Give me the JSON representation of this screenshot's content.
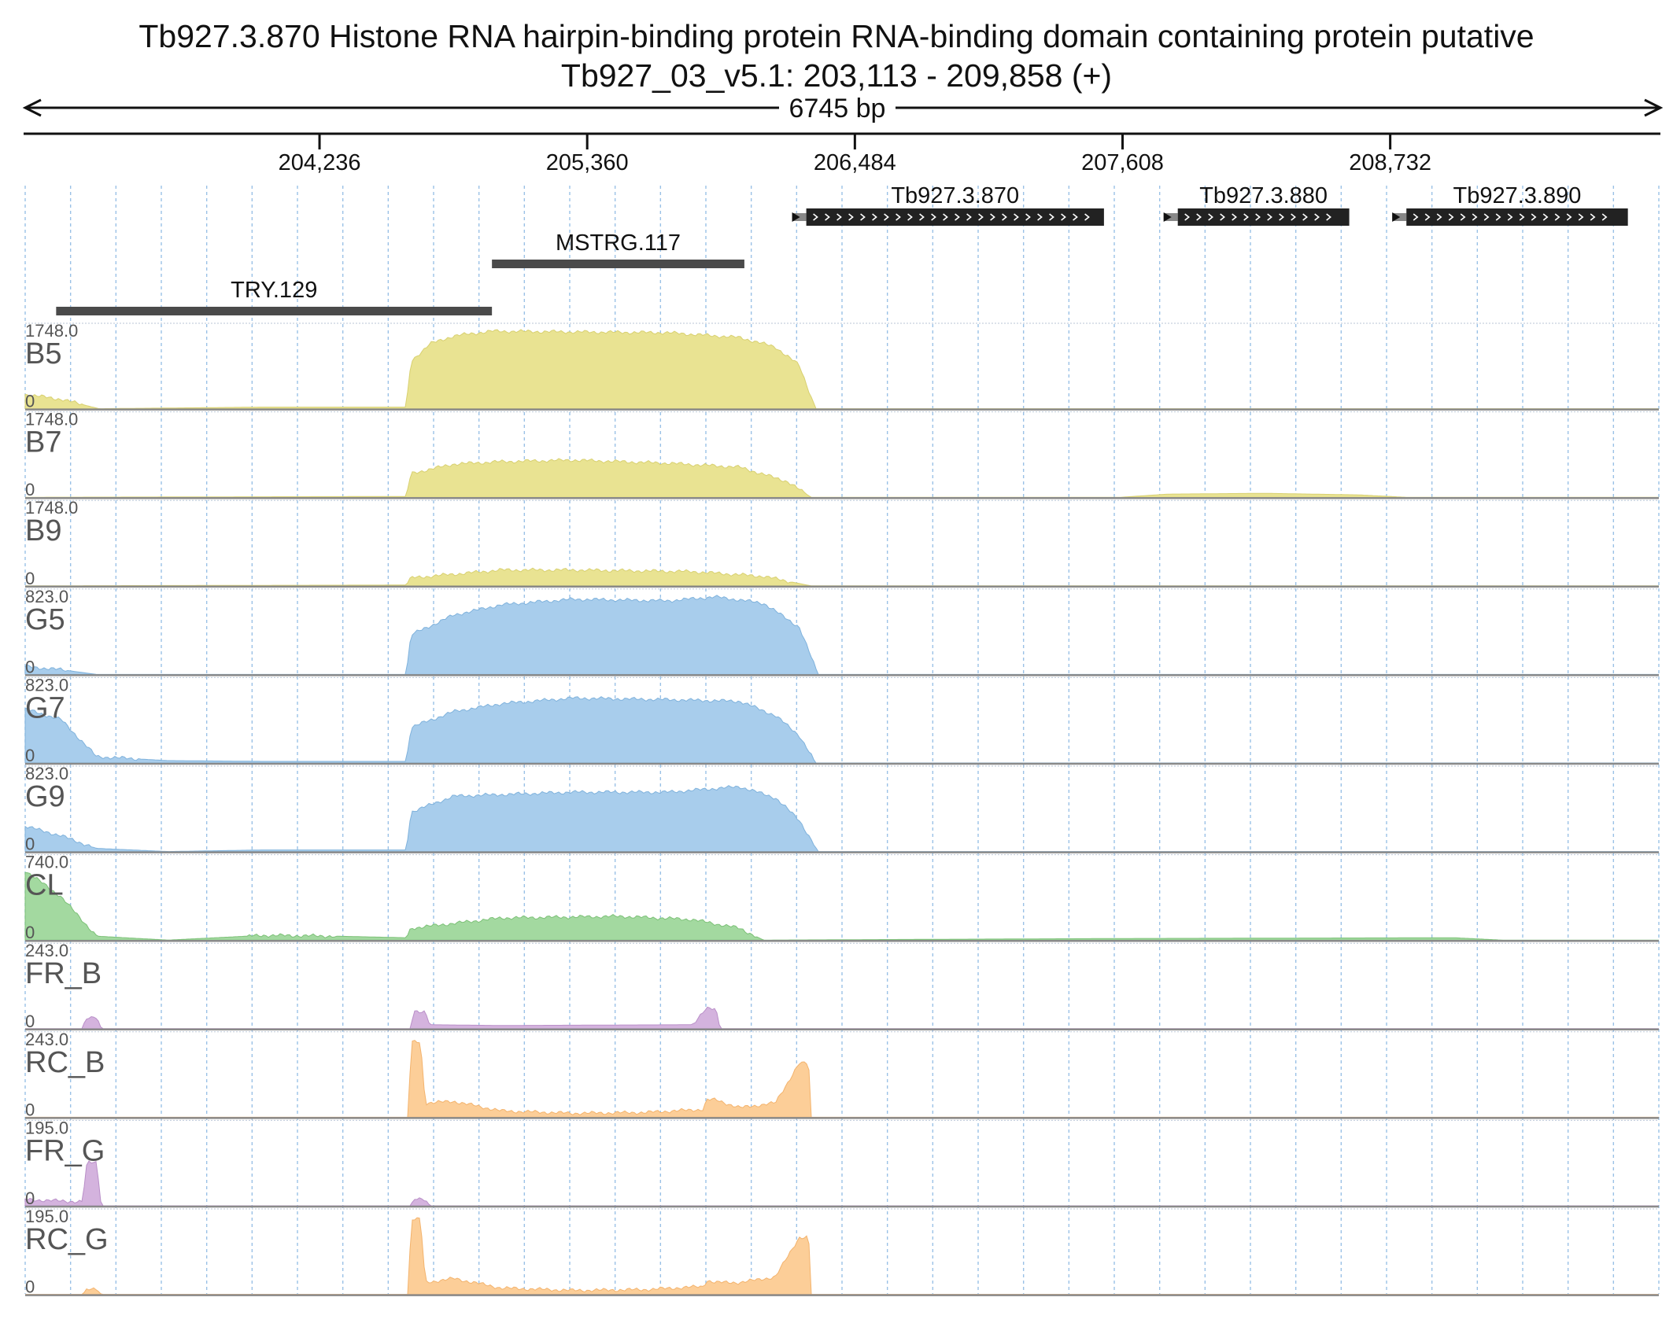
{
  "title": {
    "gene_line": "Tb927.3.870  Histone RNA hairpin-binding protein RNA-binding domain containing protein  putative",
    "location_line": "Tb927_03_v5.1: 203,113 - 209,858 (+)"
  },
  "ruler": {
    "span_label": "6745 bp",
    "ticks": [
      {
        "label": "204,236",
        "pos": 204236
      },
      {
        "label": "205,360",
        "pos": 205360
      },
      {
        "label": "206,484",
        "pos": 206484
      },
      {
        "label": "207,608",
        "pos": 207608
      },
      {
        "label": "208,732",
        "pos": 208732
      }
    ]
  },
  "region": {
    "start": 203000,
    "end": 209860
  },
  "features": [
    {
      "name": "Tb927.3.870",
      "kind": "gene",
      "start": 206280,
      "end": 207530,
      "strand": "+"
    },
    {
      "name": "Tb927.3.880",
      "kind": "gene",
      "start": 207840,
      "end": 208560,
      "strand": "+"
    },
    {
      "name": "Tb927.3.890",
      "kind": "gene",
      "start": 208800,
      "end": 209730,
      "strand": "+"
    },
    {
      "name": "MSTRG.117",
      "kind": "transcript",
      "start": 204960,
      "end": 206020
    },
    {
      "name": "TRY.129",
      "kind": "transcript",
      "start": 203130,
      "end": 204960
    }
  ],
  "tracks": [
    {
      "name": "B5",
      "max_label": "1748.0",
      "min_label": "0",
      "color": "#e9e392",
      "edge": "#d8d070",
      "profile": [
        [
          203000,
          0.18
        ],
        [
          203150,
          0.12
        ],
        [
          203310,
          0.0
        ],
        [
          204000,
          0.02
        ],
        [
          204600,
          0.02
        ],
        [
          204620,
          0.6
        ],
        [
          204700,
          0.82
        ],
        [
          204800,
          0.92
        ],
        [
          204960,
          0.98
        ],
        [
          205300,
          0.97
        ],
        [
          205700,
          0.96
        ],
        [
          206000,
          0.9
        ],
        [
          206150,
          0.78
        ],
        [
          206250,
          0.55
        ],
        [
          206320,
          0.0
        ],
        [
          209860,
          0.0
        ]
      ]
    },
    {
      "name": "B7",
      "max_label": "1748.0",
      "min_label": "0",
      "color": "#e9e392",
      "edge": "#d8d070",
      "profile": [
        [
          203000,
          0.0
        ],
        [
          204600,
          0.01
        ],
        [
          204620,
          0.3
        ],
        [
          204800,
          0.42
        ],
        [
          205000,
          0.45
        ],
        [
          205300,
          0.47
        ],
        [
          205700,
          0.43
        ],
        [
          206000,
          0.38
        ],
        [
          206200,
          0.2
        ],
        [
          206300,
          0.0
        ],
        [
          207600,
          0.0
        ],
        [
          207800,
          0.04
        ],
        [
          208200,
          0.05
        ],
        [
          208600,
          0.03
        ],
        [
          208800,
          0.0
        ],
        [
          209860,
          0.0
        ]
      ]
    },
    {
      "name": "B9",
      "max_label": "1748.0",
      "min_label": "0",
      "color": "#e9e392",
      "edge": "#d8d070",
      "profile": [
        [
          203000,
          0.0
        ],
        [
          204600,
          0.01
        ],
        [
          204620,
          0.1
        ],
        [
          205000,
          0.2
        ],
        [
          205300,
          0.2
        ],
        [
          205800,
          0.18
        ],
        [
          206100,
          0.12
        ],
        [
          206300,
          0.0
        ],
        [
          209860,
          0.0
        ]
      ]
    },
    {
      "name": "G5",
      "max_label": "823.0",
      "min_label": "0",
      "color": "#a8cdec",
      "edge": "#7fb2dc",
      "profile": [
        [
          203000,
          0.1
        ],
        [
          203150,
          0.06
        ],
        [
          203300,
          0.0
        ],
        [
          204600,
          0.0
        ],
        [
          204620,
          0.5
        ],
        [
          204800,
          0.75
        ],
        [
          205000,
          0.88
        ],
        [
          205300,
          0.95
        ],
        [
          205700,
          0.93
        ],
        [
          205900,
          0.98
        ],
        [
          206100,
          0.9
        ],
        [
          206250,
          0.6
        ],
        [
          206330,
          0.0
        ],
        [
          209860,
          0.0
        ]
      ]
    },
    {
      "name": "G7",
      "max_label": "823.0",
      "min_label": "0",
      "color": "#a8cdec",
      "edge": "#7fb2dc",
      "profile": [
        [
          203000,
          0.68
        ],
        [
          203150,
          0.55
        ],
        [
          203300,
          0.08
        ],
        [
          203600,
          0.03
        ],
        [
          204000,
          0.02
        ],
        [
          204600,
          0.02
        ],
        [
          204620,
          0.45
        ],
        [
          204800,
          0.65
        ],
        [
          205000,
          0.75
        ],
        [
          205300,
          0.82
        ],
        [
          205700,
          0.8
        ],
        [
          206000,
          0.78
        ],
        [
          206150,
          0.6
        ],
        [
          206250,
          0.35
        ],
        [
          206320,
          0.0
        ],
        [
          209860,
          0.0
        ]
      ]
    },
    {
      "name": "G9",
      "max_label": "823.0",
      "min_label": "0",
      "color": "#a8cdec",
      "edge": "#7fb2dc",
      "profile": [
        [
          203000,
          0.32
        ],
        [
          203150,
          0.2
        ],
        [
          203300,
          0.04
        ],
        [
          203600,
          0.0
        ],
        [
          204000,
          0.02
        ],
        [
          204600,
          0.02
        ],
        [
          204620,
          0.5
        ],
        [
          204800,
          0.7
        ],
        [
          205000,
          0.72
        ],
        [
          205300,
          0.75
        ],
        [
          205700,
          0.75
        ],
        [
          206000,
          0.82
        ],
        [
          206150,
          0.68
        ],
        [
          206250,
          0.4
        ],
        [
          206330,
          0.0
        ],
        [
          209860,
          0.0
        ]
      ]
    },
    {
      "name": "CL",
      "max_label": "740.0",
      "min_label": "0",
      "color": "#a3d9a0",
      "edge": "#7cc177",
      "profile": [
        [
          203000,
          0.88
        ],
        [
          203150,
          0.55
        ],
        [
          203300,
          0.05
        ],
        [
          203600,
          0.0
        ],
        [
          204000,
          0.06
        ],
        [
          204300,
          0.05
        ],
        [
          204600,
          0.03
        ],
        [
          204620,
          0.15
        ],
        [
          205000,
          0.28
        ],
        [
          205500,
          0.3
        ],
        [
          205800,
          0.26
        ],
        [
          206000,
          0.15
        ],
        [
          206100,
          0.0
        ],
        [
          207600,
          0.02
        ],
        [
          209000,
          0.03
        ],
        [
          209200,
          0.0
        ],
        [
          209860,
          0.0
        ]
      ]
    },
    {
      "name": "FR_B",
      "max_label": "243.0",
      "min_label": "0",
      "color": "#d4b3de",
      "edge": "#b98fc8",
      "profile": [
        [
          203000,
          0.0
        ],
        [
          203240,
          0.0
        ],
        [
          203260,
          0.15
        ],
        [
          203300,
          0.15
        ],
        [
          203320,
          0.0
        ],
        [
          204620,
          0.0
        ],
        [
          204630,
          0.22
        ],
        [
          204680,
          0.22
        ],
        [
          204700,
          0.05
        ],
        [
          205000,
          0.04
        ],
        [
          205800,
          0.05
        ],
        [
          205860,
          0.25
        ],
        [
          205900,
          0.25
        ],
        [
          205920,
          0.0
        ],
        [
          209860,
          0.0
        ]
      ]
    },
    {
      "name": "RC_B",
      "max_label": "243.0",
      "min_label": "0",
      "color": "#fcce98",
      "edge": "#f3b36d",
      "profile": [
        [
          203000,
          0.0
        ],
        [
          204610,
          0.0
        ],
        [
          204620,
          0.95
        ],
        [
          204660,
          0.95
        ],
        [
          204680,
          0.18
        ],
        [
          204800,
          0.2
        ],
        [
          205000,
          0.08
        ],
        [
          205300,
          0.05
        ],
        [
          205600,
          0.06
        ],
        [
          205850,
          0.1
        ],
        [
          205860,
          0.22
        ],
        [
          205900,
          0.22
        ],
        [
          206000,
          0.12
        ],
        [
          206150,
          0.18
        ],
        [
          206250,
          0.68
        ],
        [
          206290,
          0.68
        ],
        [
          206300,
          0.0
        ],
        [
          209860,
          0.0
        ]
      ]
    },
    {
      "name": "FR_G",
      "max_label": "195.0",
      "min_label": "0",
      "color": "#d4b3de",
      "edge": "#b98fc8",
      "profile": [
        [
          203000,
          0.08
        ],
        [
          203240,
          0.05
        ],
        [
          203260,
          0.55
        ],
        [
          203300,
          0.55
        ],
        [
          203320,
          0.0
        ],
        [
          204620,
          0.0
        ],
        [
          204630,
          0.08
        ],
        [
          204680,
          0.08
        ],
        [
          204700,
          0.0
        ],
        [
          209860,
          0.0
        ]
      ]
    },
    {
      "name": "RC_G",
      "max_label": "195.0",
      "min_label": "0",
      "color": "#fcce98",
      "edge": "#f3b36d",
      "profile": [
        [
          203000,
          0.0
        ],
        [
          203240,
          0.0
        ],
        [
          203260,
          0.06
        ],
        [
          203300,
          0.06
        ],
        [
          203320,
          0.0
        ],
        [
          204610,
          0.0
        ],
        [
          204620,
          0.95
        ],
        [
          204660,
          0.95
        ],
        [
          204680,
          0.15
        ],
        [
          204800,
          0.2
        ],
        [
          205000,
          0.08
        ],
        [
          205300,
          0.05
        ],
        [
          205600,
          0.06
        ],
        [
          205850,
          0.1
        ],
        [
          205860,
          0.18
        ],
        [
          205900,
          0.15
        ],
        [
          206000,
          0.15
        ],
        [
          206150,
          0.22
        ],
        [
          206250,
          0.72
        ],
        [
          206290,
          0.72
        ],
        [
          206300,
          0.0
        ],
        [
          209860,
          0.0
        ]
      ]
    }
  ],
  "palette": {
    "grid_line": "#9ac1e6",
    "track_separator": "#8a8a8a",
    "feature_gene": "#222222",
    "feature_transcript": "#4a4a4a",
    "label_gray": "#555555"
  }
}
